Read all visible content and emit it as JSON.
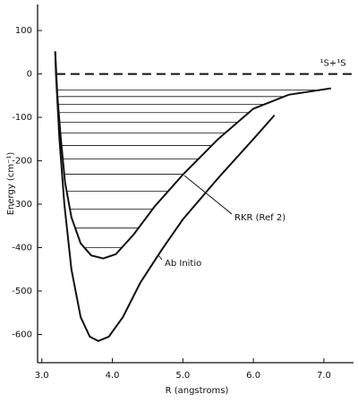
{
  "chart_data": {
    "type": "line",
    "x_label": "R (angstroms)",
    "y_label": "Energy (cm⁻¹)",
    "xlim": [
      2.94,
      7.42
    ],
    "ylim": [
      -665,
      160
    ],
    "xticks": [
      {
        "value": 3,
        "label": "3.0"
      },
      {
        "value": 4,
        "label": "4.0"
      },
      {
        "value": 5,
        "label": "5.0"
      },
      {
        "value": 6,
        "label": "6.0"
      },
      {
        "value": 7,
        "label": "7.0"
      }
    ],
    "yticks": [
      100,
      0,
      -100,
      -200,
      -300,
      -400,
      -500,
      -600
    ],
    "series": [
      {
        "name": "RKR (Ref 2)",
        "color": "#111111",
        "x": [
          3.19,
          3.22,
          3.27,
          3.33,
          3.42,
          3.55,
          3.7,
          3.87,
          4.05,
          4.3,
          4.6,
          5.0,
          5.5,
          6.0,
          6.5,
          7.1
        ],
        "values": [
          52,
          -50,
          -150,
          -250,
          -330,
          -390,
          -418,
          -425,
          -415,
          -370,
          -305,
          -232,
          -150,
          -80,
          -48,
          -33
        ]
      },
      {
        "name": "Ab Initio",
        "color": "#111111",
        "x": [
          3.19,
          3.2,
          3.25,
          3.32,
          3.42,
          3.55,
          3.68,
          3.8,
          3.95,
          4.15,
          4.4,
          4.7,
          5.0,
          5.5,
          6.0,
          6.3
        ],
        "values": [
          52,
          0,
          -150,
          -300,
          -450,
          -560,
          -605,
          -615,
          -605,
          -560,
          -480,
          -405,
          -335,
          -240,
          -150,
          -95
        ]
      }
    ],
    "levels": [
      -400,
      -355,
      -311,
      -270,
      -231,
      -196,
      -165,
      -136,
      -111,
      -89,
      -70,
      -52,
      -37
    ],
    "asymptote": {
      "value": 0,
      "label": "¹S+¹S"
    }
  }
}
